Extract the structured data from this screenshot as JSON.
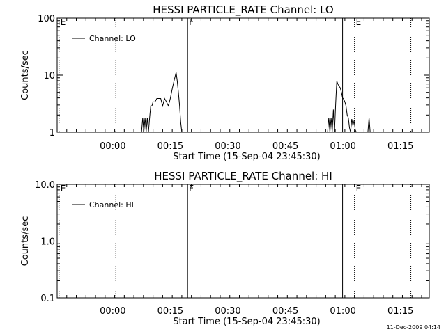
{
  "footer": {
    "timestamp": "11-Dec-2009 04:14"
  },
  "chart_data": [
    {
      "type": "line",
      "title": "HESSI PARTICLE_RATE Channel: LO",
      "xlabel": "Start Time (15-Sep-04 23:45:30)",
      "ylabel": "Counts/sec",
      "xscale": "linear",
      "yscale": "log",
      "x_units": "minutes since 23:45:30",
      "xlim": [
        0,
        97
      ],
      "ylim": [
        1,
        100
      ],
      "grid": false,
      "legend_position": "top-left",
      "x_ticks": [
        {
          "value": 14.5,
          "label": "00:00"
        },
        {
          "value": 29.5,
          "label": "00:15"
        },
        {
          "value": 44.5,
          "label": "00:30"
        },
        {
          "value": 59.5,
          "label": "00:45"
        },
        {
          "value": 74.5,
          "label": "01:00"
        },
        {
          "value": 89.5,
          "label": "01:15"
        }
      ],
      "y_ticks": [
        {
          "value": 1,
          "label": "1"
        },
        {
          "value": 10,
          "label": "10"
        },
        {
          "value": 100,
          "label": "100"
        }
      ],
      "markers": [
        {
          "x": 0.5,
          "style": "dotted",
          "label": "E"
        },
        {
          "x": 15.3,
          "style": "dotted",
          "label": ""
        },
        {
          "x": 34.0,
          "style": "solid",
          "label": "F"
        },
        {
          "x": 74.4,
          "style": "solid",
          "label": ""
        },
        {
          "x": 77.5,
          "style": "dotted",
          "label": "E"
        },
        {
          "x": 92.2,
          "style": "dotted",
          "label": ""
        }
      ],
      "series": [
        {
          "name": "Channel: LO",
          "x": [
            22.0,
            22.3,
            22.6,
            22.9,
            23.2,
            23.5,
            23.8,
            24.1,
            24.4,
            24.7,
            25.0,
            25.5,
            26.0,
            26.5,
            27.0,
            27.5,
            28.0,
            28.5,
            29.0,
            29.5,
            30.0,
            30.5,
            31.0,
            31.3,
            31.6,
            31.9,
            32.2,
            32.5,
            70.5,
            70.8,
            71.1,
            71.4,
            71.7,
            72.0,
            72.3,
            72.6,
            72.9,
            73.2,
            73.5,
            73.8,
            74.1,
            74.4,
            74.7,
            75.0,
            75.3,
            75.6,
            75.9,
            76.2,
            76.5,
            76.8,
            77.1,
            77.4,
            77.7,
            78.0,
            78.3,
            78.6,
            78.9,
            79.2,
            79.5,
            79.8,
            80.1,
            80.4,
            80.7,
            81.0,
            81.3,
            81.6,
            81.9,
            82.2,
            82.5
          ],
          "y": [
            1.0,
            1.8,
            1.0,
            1.8,
            1.0,
            1.8,
            1.0,
            1.8,
            2.9,
            2.9,
            3.4,
            3.4,
            3.9,
            3.9,
            3.9,
            2.9,
            3.9,
            3.4,
            2.9,
            3.9,
            5.8,
            8.1,
            11.2,
            8.0,
            5.0,
            3.0,
            1.5,
            1.0,
            1.0,
            1.8,
            1.0,
            1.8,
            1.0,
            2.5,
            1.0,
            3.2,
            7.9,
            6.9,
            6.4,
            6.0,
            5.0,
            4.0,
            3.8,
            3.4,
            2.9,
            2.0,
            1.8,
            1.2,
            1.0,
            1.7,
            1.3,
            1.6,
            1.1,
            1.0,
            1.0,
            1.0,
            1.0,
            1.0,
            1.0,
            1.0,
            1.0,
            1.0,
            1.0,
            1.0,
            1.8,
            1.0,
            1.0,
            1.0,
            1.0
          ]
        }
      ]
    },
    {
      "type": "line",
      "title": "HESSI PARTICLE_RATE Channel: HI",
      "xlabel": "Start Time (15-Sep-04 23:45:30)",
      "ylabel": "Counts/sec",
      "xscale": "linear",
      "yscale": "log",
      "x_units": "minutes since 23:45:30",
      "xlim": [
        0,
        97
      ],
      "ylim": [
        0.1,
        10
      ],
      "grid": false,
      "legend_position": "top-left",
      "x_ticks": [
        {
          "value": 14.5,
          "label": "00:00"
        },
        {
          "value": 29.5,
          "label": "00:15"
        },
        {
          "value": 44.5,
          "label": "00:30"
        },
        {
          "value": 59.5,
          "label": "00:45"
        },
        {
          "value": 74.5,
          "label": "01:00"
        },
        {
          "value": 89.5,
          "label": "01:15"
        }
      ],
      "y_ticks": [
        {
          "value": 0.1,
          "label": "0.1"
        },
        {
          "value": 1,
          "label": "1.0"
        },
        {
          "value": 10,
          "label": "10.0"
        }
      ],
      "markers": [
        {
          "x": 0.5,
          "style": "dotted",
          "label": "E"
        },
        {
          "x": 15.3,
          "style": "dotted",
          "label": ""
        },
        {
          "x": 34.0,
          "style": "solid",
          "label": "F"
        },
        {
          "x": 74.4,
          "style": "solid",
          "label": ""
        },
        {
          "x": 77.5,
          "style": "dotted",
          "label": "E"
        },
        {
          "x": 92.2,
          "style": "dotted",
          "label": ""
        }
      ],
      "series": [
        {
          "name": "Channel: HI",
          "x": [],
          "y": []
        }
      ]
    }
  ]
}
